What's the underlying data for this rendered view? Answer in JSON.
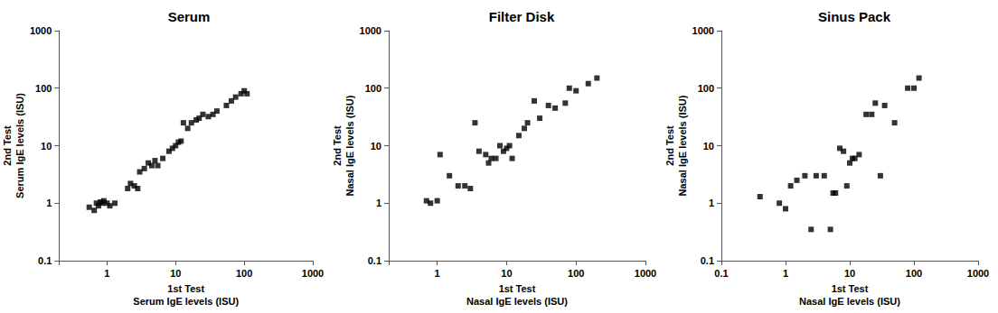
{
  "chart_data": [
    {
      "type": "scatter",
      "title": "Serum",
      "xlabel": "1st Test\nSerum IgE levels (ISU)",
      "ylabel": "2nd Test\nSerum IgE levels (ISU)",
      "x": [
        0.55,
        0.65,
        0.7,
        0.75,
        0.8,
        0.85,
        0.9,
        1.0,
        1.1,
        1.3,
        2.0,
        2.2,
        2.5,
        2.8,
        3.0,
        3.5,
        4.0,
        4.5,
        5.0,
        5.5,
        6.5,
        8.0,
        9.0,
        10.0,
        11.0,
        12.0,
        13.0,
        15.0,
        17.0,
        20.0,
        22.0,
        25.0,
        30.0,
        35.0,
        40.0,
        55.0,
        65.0,
        75.0,
        90.0,
        100.0,
        110.0
      ],
      "values": [
        0.85,
        0.75,
        1.0,
        0.9,
        1.05,
        1.0,
        1.1,
        1.0,
        0.9,
        1.0,
        1.8,
        2.2,
        2.0,
        1.8,
        3.5,
        4.0,
        5.0,
        4.5,
        5.5,
        4.5,
        6.0,
        8.0,
        9.0,
        10.0,
        11.5,
        12.0,
        25.0,
        20.0,
        25.0,
        28.0,
        30.0,
        35.0,
        32.0,
        35.0,
        40.0,
        50.0,
        60.0,
        70.0,
        80.0,
        90.0,
        80.0
      ],
      "color": "#000000",
      "marker": "square",
      "log": true,
      "grid": false,
      "xlim": [
        0.2,
        1000
      ],
      "ylim": [
        0.1,
        1000
      ],
      "xticks": [
        1,
        10,
        100,
        1000
      ],
      "yticks": [
        0.1,
        1,
        10,
        100,
        1000
      ]
    },
    {
      "type": "scatter",
      "title": "Filter Disk",
      "xlabel": "1st Test\nNasal IgE levels (ISU)",
      "ylabel": "2nd Test\nNasal IgE levels (ISU)",
      "x": [
        0.7,
        0.8,
        1.0,
        1.1,
        1.5,
        2.0,
        2.5,
        3.0,
        3.5,
        4.0,
        5.0,
        5.5,
        6.0,
        7.0,
        8.0,
        9.0,
        10.0,
        11.0,
        12.0,
        15.0,
        18.0,
        20.0,
        25.0,
        30.0,
        40.0,
        50.0,
        70.0,
        80.0,
        100.0,
        150.0,
        200.0
      ],
      "values": [
        1.1,
        1.0,
        1.1,
        7.0,
        3.0,
        2.0,
        2.0,
        1.8,
        25.0,
        8.0,
        7.0,
        5.0,
        6.0,
        6.0,
        10.0,
        8.0,
        9.0,
        10.0,
        6.0,
        15.0,
        20.0,
        25.0,
        60.0,
        30.0,
        50.0,
        45.0,
        55.0,
        100.0,
        90.0,
        120.0,
        150.0
      ],
      "color": "#000000",
      "marker": "square",
      "log": true,
      "grid": false,
      "xlim": [
        0.2,
        1000
      ],
      "ylim": [
        0.1,
        1000
      ],
      "xticks": [
        1,
        10,
        100,
        1000
      ],
      "yticks": [
        0.1,
        1,
        10,
        100,
        1000
      ]
    },
    {
      "type": "scatter",
      "title": "Sinus Pack",
      "xlabel": "1st Test\nNasal IgE levels (ISU)",
      "ylabel": "2nd Test\nNasal IgE levels (ISU)",
      "x": [
        0.4,
        0.8,
        1.0,
        1.2,
        1.5,
        2.0,
        2.5,
        3.0,
        4.0,
        5.0,
        5.5,
        6.0,
        7.0,
        8.0,
        9.0,
        10.0,
        11.0,
        12.0,
        14.0,
        18.0,
        22.0,
        25.0,
        30.0,
        35.0,
        50.0,
        80.0,
        100.0,
        120.0
      ],
      "values": [
        1.3,
        1.0,
        0.8,
        2.0,
        2.5,
        3.0,
        0.35,
        3.0,
        3.0,
        0.35,
        1.5,
        1.5,
        9.0,
        8.0,
        2.0,
        5.0,
        6.0,
        6.0,
        7.0,
        35.0,
        35.0,
        55.0,
        3.0,
        50.0,
        25.0,
        100.0,
        100.0,
        150.0
      ],
      "color": "#000000",
      "marker": "square",
      "log": true,
      "grid": false,
      "xlim": [
        0.1,
        1000
      ],
      "ylim": [
        0.1,
        1000
      ],
      "xticks": [
        0.1,
        1,
        10,
        100,
        1000
      ],
      "yticks": [
        0.1,
        1,
        10,
        100,
        1000
      ]
    }
  ]
}
